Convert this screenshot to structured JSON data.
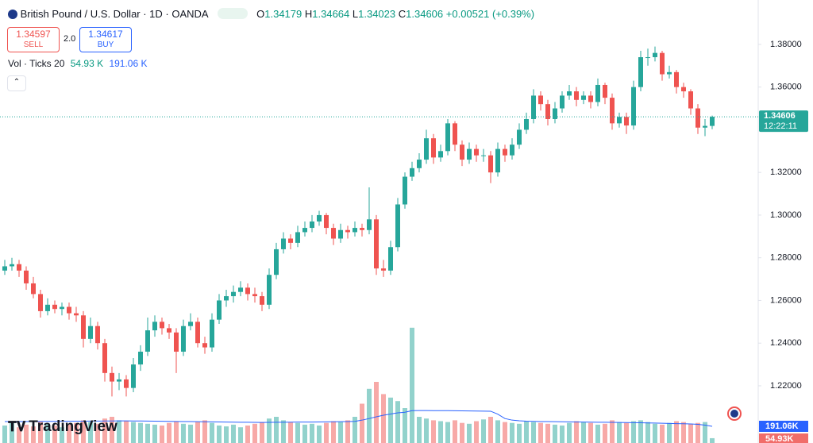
{
  "header": {
    "symbol": "British Pound / U.S. Dollar · 1D · OANDA",
    "ohlc_letters": [
      "O",
      "H",
      "L",
      "C"
    ],
    "change": "+0.00521 (+0.39%)",
    "sell_price": "1.34597",
    "sell_label": "SELL",
    "spread": "2.0",
    "buy_price": "1.34617",
    "buy_label": "BUY",
    "vol_title": "Vol · Ticks 20",
    "countdown": "12:22:11",
    "logo": "TradingView"
  },
  "chart_data": {
    "type": "candlestick",
    "up_color": "#26a69a",
    "down_color": "#ef5350",
    "ylim": [
      1.1932,
      1.4008
    ],
    "yticks": [
      {
        "value": 1.22,
        "label": "1.22000"
      },
      {
        "value": 1.24,
        "label": "1.24000"
      },
      {
        "value": 1.26,
        "label": "1.26000"
      },
      {
        "value": 1.28,
        "label": "1.28000"
      },
      {
        "value": 1.3,
        "label": "1.30000"
      },
      {
        "value": 1.32,
        "label": "1.32000"
      },
      {
        "value": 1.36,
        "label": "1.36000"
      },
      {
        "value": 1.38,
        "label": "1.38000"
      }
    ],
    "candles": [
      [
        1.274,
        1.279,
        1.272,
        1.276
      ],
      [
        1.276,
        1.28,
        1.274,
        1.277
      ],
      [
        1.277,
        1.279,
        1.271,
        1.274
      ],
      [
        1.274,
        1.276,
        1.265,
        1.268
      ],
      [
        1.268,
        1.271,
        1.261,
        1.263
      ],
      [
        1.263,
        1.265,
        1.252,
        1.255
      ],
      [
        1.255,
        1.261,
        1.253,
        1.258
      ],
      [
        1.258,
        1.26,
        1.254,
        1.256
      ],
      [
        1.256,
        1.259,
        1.253,
        1.257
      ],
      [
        1.257,
        1.259,
        1.251,
        1.254
      ],
      [
        1.254,
        1.257,
        1.25,
        1.253
      ],
      [
        1.253,
        1.255,
        1.238,
        1.242
      ],
      [
        1.242,
        1.252,
        1.24,
        1.248
      ],
      [
        1.248,
        1.25,
        1.237,
        1.24
      ],
      [
        1.24,
        1.242,
        1.222,
        1.226
      ],
      [
        1.226,
        1.229,
        1.215,
        1.222
      ],
      [
        1.222,
        1.226,
        1.218,
        1.223
      ],
      [
        1.223,
        1.225,
        1.215,
        1.219
      ],
      [
        1.219,
        1.233,
        1.217,
        1.23
      ],
      [
        1.23,
        1.239,
        1.227,
        1.236
      ],
      [
        1.236,
        1.252,
        1.234,
        1.246
      ],
      [
        1.246,
        1.253,
        1.243,
        1.25
      ],
      [
        1.25,
        1.252,
        1.244,
        1.247
      ],
      [
        1.247,
        1.249,
        1.242,
        1.245
      ],
      [
        1.245,
        1.247,
        1.226,
        1.236
      ],
      [
        1.236,
        1.251,
        1.234,
        1.248
      ],
      [
        1.248,
        1.254,
        1.246,
        1.25
      ],
      [
        1.25,
        1.252,
        1.238,
        1.24
      ],
      [
        1.24,
        1.243,
        1.235,
        1.238
      ],
      [
        1.238,
        1.254,
        1.236,
        1.251
      ],
      [
        1.251,
        1.263,
        1.249,
        1.26
      ],
      [
        1.26,
        1.265,
        1.257,
        1.262
      ],
      [
        1.262,
        1.267,
        1.259,
        1.264
      ],
      [
        1.264,
        1.269,
        1.262,
        1.266
      ],
      [
        1.266,
        1.268,
        1.26,
        1.263
      ],
      [
        1.263,
        1.266,
        1.259,
        1.262
      ],
      [
        1.262,
        1.264,
        1.255,
        1.258
      ],
      [
        1.258,
        1.275,
        1.256,
        1.272
      ],
      [
        1.272,
        1.287,
        1.27,
        1.284
      ],
      [
        1.284,
        1.292,
        1.282,
        1.289
      ],
      [
        1.289,
        1.291,
        1.284,
        1.287
      ],
      [
        1.287,
        1.295,
        1.285,
        1.292
      ],
      [
        1.292,
        1.297,
        1.29,
        1.294
      ],
      [
        1.294,
        1.3,
        1.292,
        1.297
      ],
      [
        1.297,
        1.302,
        1.295,
        1.3
      ],
      [
        1.3,
        1.301,
        1.291,
        1.294
      ],
      [
        1.294,
        1.296,
        1.286,
        1.289
      ],
      [
        1.289,
        1.296,
        1.287,
        1.293
      ],
      [
        1.293,
        1.295,
        1.289,
        1.292
      ],
      [
        1.292,
        1.297,
        1.29,
        1.294
      ],
      [
        1.294,
        1.296,
        1.29,
        1.293
      ],
      [
        1.293,
        1.313,
        1.291,
        1.298
      ],
      [
        1.298,
        1.3,
        1.272,
        1.275
      ],
      [
        1.275,
        1.279,
        1.271,
        1.274
      ],
      [
        1.274,
        1.288,
        1.272,
        1.285
      ],
      [
        1.285,
        1.308,
        1.283,
        1.305
      ],
      [
        1.305,
        1.32,
        1.303,
        1.318
      ],
      [
        1.318,
        1.325,
        1.316,
        1.322
      ],
      [
        1.322,
        1.329,
        1.32,
        1.326
      ],
      [
        1.326,
        1.34,
        1.324,
        1.336
      ],
      [
        1.336,
        1.338,
        1.324,
        1.327
      ],
      [
        1.327,
        1.333,
        1.325,
        1.33
      ],
      [
        1.33,
        1.345,
        1.328,
        1.343
      ],
      [
        1.343,
        1.344,
        1.33,
        1.333
      ],
      [
        1.333,
        1.335,
        1.323,
        1.326
      ],
      [
        1.326,
        1.334,
        1.324,
        1.331
      ],
      [
        1.331,
        1.333,
        1.325,
        1.328
      ],
      [
        1.328,
        1.331,
        1.325,
        1.328
      ],
      [
        1.328,
        1.33,
        1.315,
        1.32
      ],
      [
        1.32,
        1.334,
        1.318,
        1.331
      ],
      [
        1.331,
        1.333,
        1.325,
        1.328
      ],
      [
        1.328,
        1.336,
        1.326,
        1.333
      ],
      [
        1.333,
        1.343,
        1.331,
        1.34
      ],
      [
        1.34,
        1.348,
        1.338,
        1.345
      ],
      [
        1.345,
        1.359,
        1.343,
        1.356
      ],
      [
        1.356,
        1.358,
        1.349,
        1.352
      ],
      [
        1.352,
        1.354,
        1.342,
        1.345
      ],
      [
        1.345,
        1.353,
        1.343,
        1.35
      ],
      [
        1.35,
        1.358,
        1.348,
        1.356
      ],
      [
        1.356,
        1.361,
        1.354,
        1.358
      ],
      [
        1.358,
        1.36,
        1.351,
        1.354
      ],
      [
        1.354,
        1.358,
        1.352,
        1.356
      ],
      [
        1.356,
        1.358,
        1.35,
        1.353
      ],
      [
        1.353,
        1.364,
        1.351,
        1.361
      ],
      [
        1.361,
        1.362,
        1.352,
        1.355
      ],
      [
        1.355,
        1.357,
        1.34,
        1.343
      ],
      [
        1.343,
        1.348,
        1.341,
        1.346
      ],
      [
        1.346,
        1.348,
        1.338,
        1.342
      ],
      [
        1.342,
        1.363,
        1.34,
        1.36
      ],
      [
        1.36,
        1.377,
        1.358,
        1.374
      ],
      [
        1.374,
        1.378,
        1.37,
        1.374
      ],
      [
        1.374,
        1.379,
        1.372,
        1.376
      ],
      [
        1.376,
        1.377,
        1.363,
        1.366
      ],
      [
        1.366,
        1.37,
        1.364,
        1.367
      ],
      [
        1.367,
        1.368,
        1.357,
        1.36
      ],
      [
        1.36,
        1.362,
        1.355,
        1.358
      ],
      [
        1.358,
        1.359,
        1.347,
        1.35
      ],
      [
        1.35,
        1.352,
        1.338,
        1.341
      ],
      [
        1.341,
        1.345,
        1.337,
        1.3418
      ],
      [
        1.34179,
        1.34664,
        1.34023,
        1.34606
      ]
    ],
    "volume": {
      "ylim": [
        0,
        2000
      ],
      "ma_color": "#2962ff",
      "value_label": "54.93 K",
      "ma_label": "191.06 K",
      "axis_value_label": "54.93K",
      "axis_ma_label": "191.06K",
      "values": [
        200,
        230,
        180,
        210,
        190,
        250,
        220,
        200,
        180,
        210,
        230,
        260,
        240,
        220,
        280,
        300,
        260,
        250,
        240,
        230,
        220,
        210,
        200,
        230,
        250,
        220,
        210,
        240,
        260,
        230,
        200,
        190,
        210,
        180,
        200,
        220,
        240,
        280,
        300,
        260,
        240,
        230,
        210,
        220,
        200,
        230,
        250,
        240,
        260,
        300,
        450,
        620,
        700,
        560,
        520,
        480,
        400,
        1320,
        300,
        280,
        260,
        250,
        240,
        260,
        230,
        220,
        250,
        270,
        300,
        260,
        240,
        230,
        220,
        250,
        240,
        230,
        220,
        210,
        200,
        230,
        250,
        240,
        230,
        210,
        220,
        260,
        240,
        230,
        250,
        260,
        240,
        220,
        210,
        230,
        250,
        240,
        220,
        230,
        240,
        54.93
      ],
      "ma": [
        245,
        245,
        246,
        246,
        247,
        247,
        248,
        248,
        249,
        249,
        250,
        250,
        251,
        251,
        252,
        252,
        253,
        253,
        252,
        252,
        251,
        250,
        249,
        248,
        247,
        246,
        245,
        244,
        243,
        242,
        241,
        240,
        239,
        238,
        237,
        236,
        235,
        236,
        237,
        238,
        239,
        240,
        240,
        240,
        241,
        242,
        243,
        244,
        246,
        248,
        262,
        280,
        300,
        318,
        332,
        345,
        352,
        370,
        372,
        372,
        371,
        370,
        370,
        369,
        368,
        367,
        366,
        365,
        364,
        330,
        280,
        262,
        255,
        250,
        248,
        246,
        245,
        244,
        243,
        242,
        241,
        240,
        239,
        238,
        237,
        236,
        235,
        234,
        233,
        232,
        230,
        228,
        226,
        224,
        222,
        220,
        218,
        214,
        205,
        191.06
      ]
    }
  }
}
